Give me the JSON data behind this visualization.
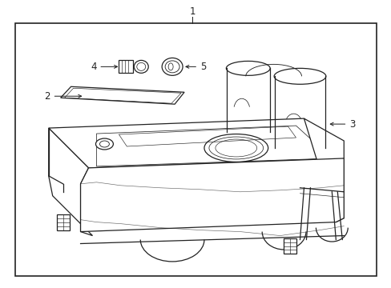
{
  "bg_color": "#ffffff",
  "line_color": "#222222",
  "label_color": "#000000",
  "fig_width": 4.89,
  "fig_height": 3.6,
  "dpi": 100,
  "label_fontsize": 8.5,
  "lw": 0.9
}
